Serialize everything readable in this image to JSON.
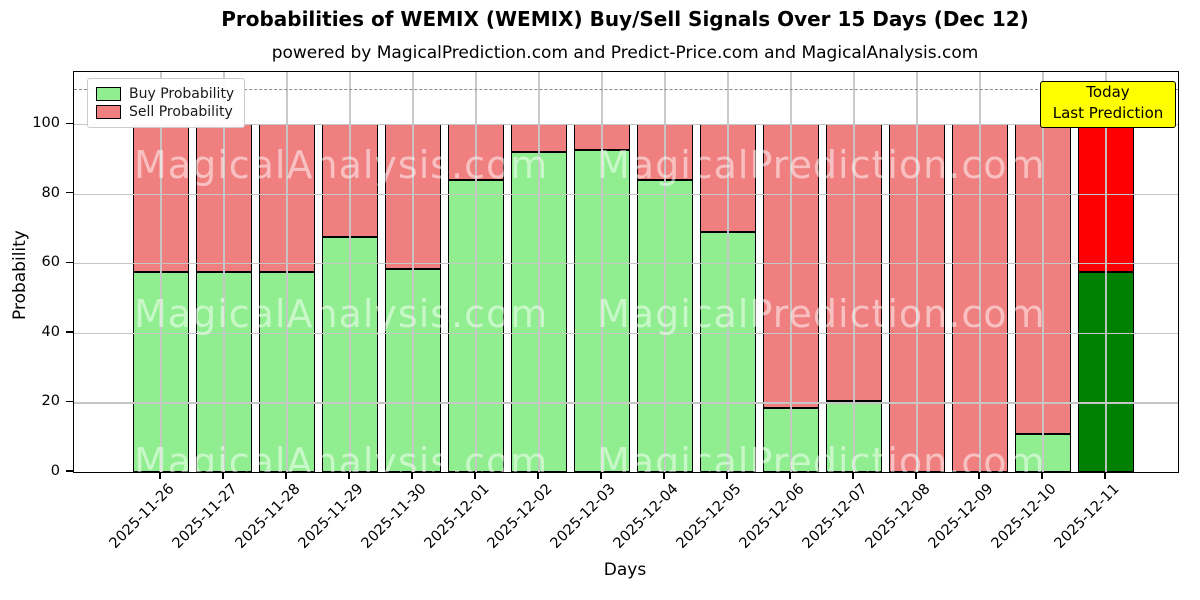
{
  "figure": {
    "title": "Probabilities of WEMIX (WEMIX) Buy/Sell Signals Over 15 Days (Dec 12)",
    "subtitle": "powered by MagicalPrediction.com and Predict-Price.com and MagicalAnalysis.com"
  },
  "legend": {
    "items": [
      {
        "label": "Buy Probability",
        "color": "#90ee90"
      },
      {
        "label": "Sell Probability",
        "color": "#f08080"
      }
    ]
  },
  "annotation_box": {
    "line1": "Today",
    "line2": "Last Prediction",
    "bg_color": "#ffff00"
  },
  "watermarks": {
    "left_text": "MagicalAnalysis.com",
    "right_text": "MagicalPrediction.com"
  },
  "colors": {
    "buy": "#90ee90",
    "sell": "#f08080",
    "today_buy": "#008000",
    "today_sell": "#ff0000",
    "bar_edge": "#000000",
    "grid": "#c6c6c6",
    "dashed_line": "#8a8a8a",
    "axis": "#000000"
  },
  "chart_data": {
    "type": "bar",
    "stacked": true,
    "title": "Probabilities of WEMIX (WEMIX) Buy/Sell Signals Over 15 Days (Dec 12)",
    "xlabel": "Days",
    "ylabel": "Probability",
    "ylim": [
      0,
      115
    ],
    "yticks": [
      0,
      20,
      40,
      60,
      80,
      100
    ],
    "dashed_line_y": 110,
    "grid": true,
    "legend_position": "upper left",
    "categories": [
      "2025-11-26",
      "2025-11-27",
      "2025-11-28",
      "2025-11-29",
      "2025-11-30",
      "2025-12-01",
      "2025-12-02",
      "2025-12-03",
      "2025-12-04",
      "2025-12-05",
      "2025-12-06",
      "2025-12-07",
      "2025-12-08",
      "2025-12-09",
      "2025-12-10",
      "2025-12-11"
    ],
    "series": [
      {
        "name": "Buy Probability",
        "color": "#90ee90",
        "today_color": "#008000",
        "values": [
          57.5,
          57.5,
          57.5,
          67.5,
          58.5,
          84,
          92,
          92.5,
          84,
          69,
          18.5,
          20.5,
          0,
          0,
          11,
          57.5
        ]
      },
      {
        "name": "Sell Probability",
        "color": "#f08080",
        "today_color": "#ff0000",
        "values": [
          42.5,
          42.5,
          42.5,
          32.5,
          41.5,
          16,
          8,
          7.5,
          16,
          31,
          81.5,
          79.5,
          100,
          100,
          89,
          42.5
        ]
      }
    ],
    "today_index": 15
  }
}
